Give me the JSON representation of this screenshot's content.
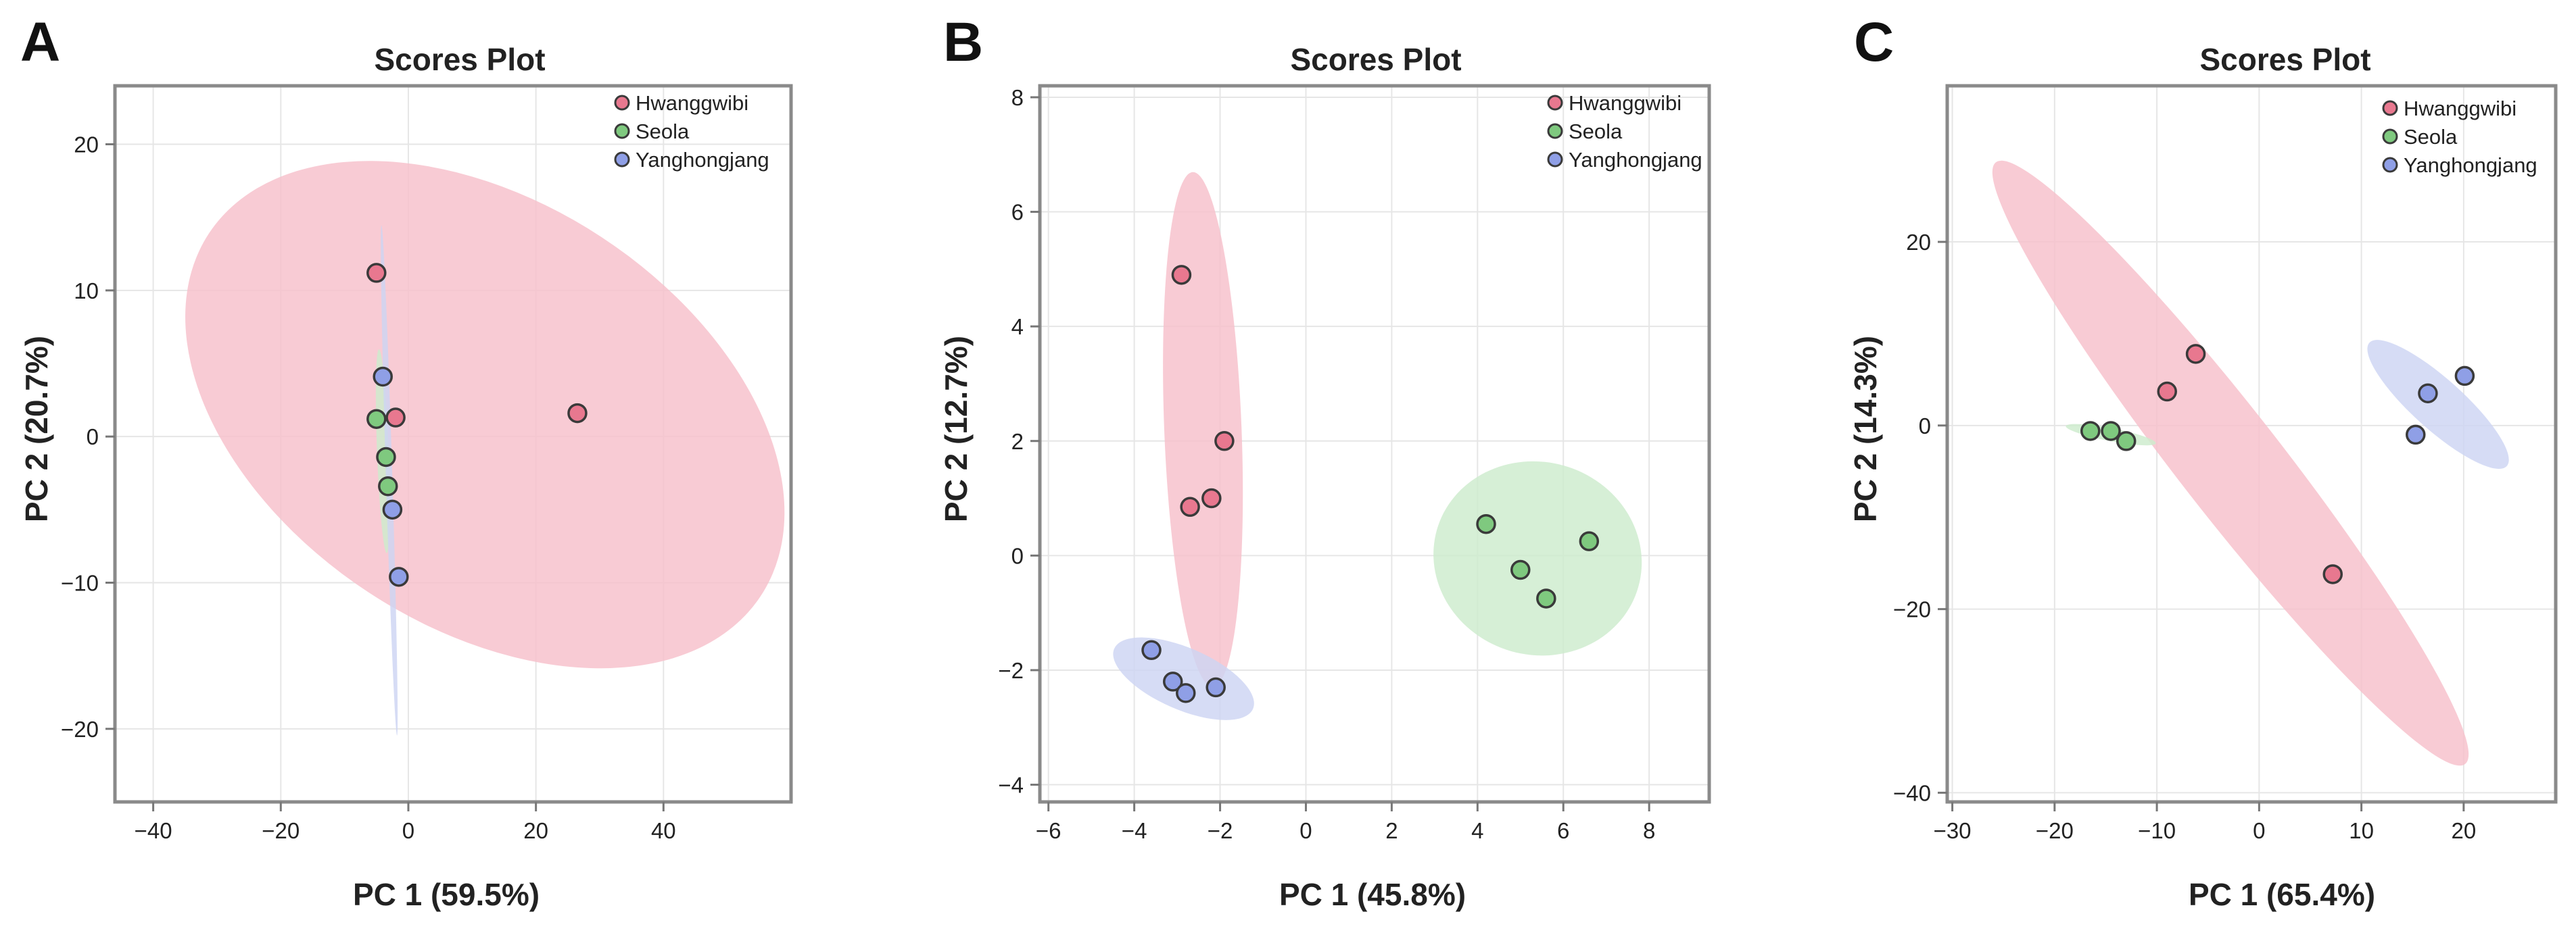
{
  "colors": {
    "Hwanggwibi": "#e8788f",
    "Seola": "#7fc97f",
    "Yanghongjang": "#8f9fe6",
    "ellipse_Hwanggwibi": "#f6bfcb",
    "ellipse_Seola": "#cdebcd",
    "ellipse_Yanghongjang": "#cdd4f3"
  },
  "chart_data": [
    {
      "type": "scatter",
      "panel": "A",
      "title": "Scores Plot",
      "xlabel": "PC 1 (59.5%)",
      "ylabel": "PC 2 (20.7%)",
      "xlim": [
        -46,
        60
      ],
      "ylim": [
        -25,
        24
      ],
      "xticks": [
        -40,
        -20,
        0,
        20,
        40
      ],
      "yticks": [
        -20,
        -10,
        0,
        10,
        20
      ],
      "grid": true,
      "legend": "top-right",
      "series": [
        {
          "name": "Hwanggwibi",
          "points": [
            [
              -5,
              11.2
            ],
            [
              -2,
              1.3
            ],
            [
              26.5,
              1.6
            ]
          ],
          "ellipse": {
            "cx": 12,
            "cy": 1.5,
            "rx": 45,
            "ry": 15,
            "angle": -16
          }
        },
        {
          "name": "Seola",
          "points": [
            [
              -5,
              1.2
            ],
            [
              -3.5,
              -1.4
            ],
            [
              -3.2,
              -3.4
            ]
          ],
          "ellipse": {
            "cx": -4,
            "cy": -1,
            "rx": 7,
            "ry": 0.9,
            "angle": -85
          }
        },
        {
          "name": "Yanghongjang",
          "points": [
            [
              -4,
              4.1
            ],
            [
              -2.5,
              -5
            ],
            [
              -1.5,
              -9.6
            ]
          ],
          "ellipse": {
            "cx": -3,
            "cy": -3,
            "rx": 17.5,
            "ry": 0.5,
            "angle": -86
          }
        }
      ]
    },
    {
      "type": "scatter",
      "panel": "B",
      "title": "Scores Plot",
      "xlabel": "PC 1 (45.8%)",
      "ylabel": "PC 2 (12.7%)",
      "xlim": [
        -6.2,
        9.4
      ],
      "ylim": [
        -4.3,
        8.2
      ],
      "xticks": [
        -6,
        -4,
        -2,
        0,
        2,
        4,
        6,
        8
      ],
      "yticks": [
        -4,
        -2,
        0,
        2,
        4,
        6,
        8
      ],
      "grid": true,
      "legend": "top-right",
      "series": [
        {
          "name": "Hwanggwibi",
          "points": [
            [
              -2.9,
              4.9
            ],
            [
              -1.9,
              2.0
            ],
            [
              -2.2,
              1.0
            ],
            [
              -2.7,
              0.85
            ]
          ],
          "ellipse": {
            "cx": -2.4,
            "cy": 2.2,
            "rx": 4.5,
            "ry": 0.9,
            "angle": -87
          }
        },
        {
          "name": "Seola",
          "points": [
            [
              4.2,
              0.55
            ],
            [
              6.6,
              0.25
            ],
            [
              5.0,
              -0.25
            ],
            [
              5.6,
              -0.75
            ]
          ],
          "ellipse": {
            "cx": 5.4,
            "cy": -0.05,
            "rx": 2.4,
            "ry": 1.7,
            "angle": -12
          }
        },
        {
          "name": "Yanghongjang",
          "points": [
            [
              -3.6,
              -1.65
            ],
            [
              -3.1,
              -2.2
            ],
            [
              -2.8,
              -2.4
            ],
            [
              -2.1,
              -2.3
            ]
          ],
          "ellipse": {
            "cx": -2.85,
            "cy": -2.15,
            "rx": 1.7,
            "ry": 0.55,
            "angle": -18
          }
        }
      ]
    },
    {
      "type": "scatter",
      "panel": "C",
      "title": "Scores Plot",
      "xlabel": "PC 1 (65.4%)",
      "ylabel": "PC 2 (14.3%)",
      "xlim": [
        -30.5,
        29
      ],
      "ylim": [
        -41,
        37
      ],
      "xticks": [
        -30,
        -20,
        -10,
        0,
        10,
        20
      ],
      "yticks": [
        -40,
        -20,
        0,
        20
      ],
      "grid": true,
      "legend": "top-right",
      "series": [
        {
          "name": "Hwanggwibi",
          "points": [
            [
              -6.2,
              7.8
            ],
            [
              -9,
              3.7
            ],
            [
              7.2,
              -16.2
            ]
          ],
          "ellipse": {
            "cx": -2.8,
            "cy": -4.1,
            "rx": 40,
            "ry": 5.2,
            "angle": -55
          }
        },
        {
          "name": "Seola",
          "points": [
            [
              -16.5,
              -0.6
            ],
            [
              -14.5,
              -0.6
            ],
            [
              -13,
              -1.7
            ]
          ],
          "ellipse": {
            "cx": -14.5,
            "cy": -1.0,
            "rx": 4.5,
            "ry": 0.7,
            "angle": -12
          }
        },
        {
          "name": "Yanghongjang",
          "points": [
            [
              15.3,
              -1
            ],
            [
              16.5,
              3.5
            ],
            [
              20.1,
              5.4
            ]
          ],
          "ellipse": {
            "cx": 17.5,
            "cy": 2.3,
            "rx": 9.5,
            "ry": 2.6,
            "angle": -45
          }
        }
      ]
    }
  ]
}
